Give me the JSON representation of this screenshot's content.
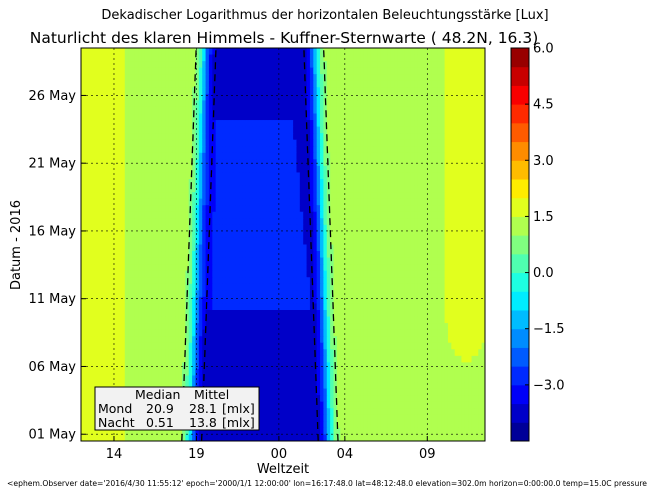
{
  "chart_data": {
    "type": "heatmap",
    "suptitle": "Dekadischer Logarithmus der horizontalen Beleuchtungsstärke [Lux]",
    "title": "Naturlicht des klaren Himmels - Kuffner-Sternwarte ( 48.2N, 16.3)",
    "xlabel": "Weltzeit",
    "ylabel": "Datum - 2016",
    "x_ticks": [
      {
        "label": "14",
        "hour": 14
      },
      {
        "label": "19",
        "hour": 19
      },
      {
        "label": "00",
        "hour": 24
      },
      {
        "label": "04",
        "hour": 28
      },
      {
        "label": "09",
        "hour": 33
      }
    ],
    "xlim_hours": [
      12,
      36.5
    ],
    "y_ticks": [
      {
        "label": "01 May",
        "day": 1
      },
      {
        "label": "06 May",
        "day": 6
      },
      {
        "label": "11 May",
        "day": 11
      },
      {
        "label": "16 May",
        "day": 16
      },
      {
        "label": "21 May",
        "day": 21
      },
      {
        "label": "26 May",
        "day": 26
      }
    ],
    "ylim_days": [
      0.5,
      29.5
    ],
    "grid": true,
    "colorbar": {
      "vmin": -4.5,
      "vmax": 6.0,
      "step": 0.5,
      "ticks": [
        "6.0",
        "4.5",
        "3.0",
        "1.5",
        "0.0",
        "−1.5",
        "−3.0"
      ]
    },
    "legend_table": {
      "header": [
        "Median",
        "Mittel"
      ],
      "rows": [
        {
          "label": "Mond",
          "median": "20.9",
          "mittel": "28.1",
          "unit": "[mlx]"
        },
        {
          "label": "Nacht",
          "median": "0.51",
          "mittel": "13.8",
          "unit": "[mlx]"
        }
      ]
    },
    "footer": "<ephem.Observer date='2016/4/30 11:55:12' epoch='2000/1/1 12:00:00' lon=16:17:48.0 lat=48:12:48.0 elevation=302.0m horizon=0:00:00.0 temp=15.0C pressure"
  }
}
